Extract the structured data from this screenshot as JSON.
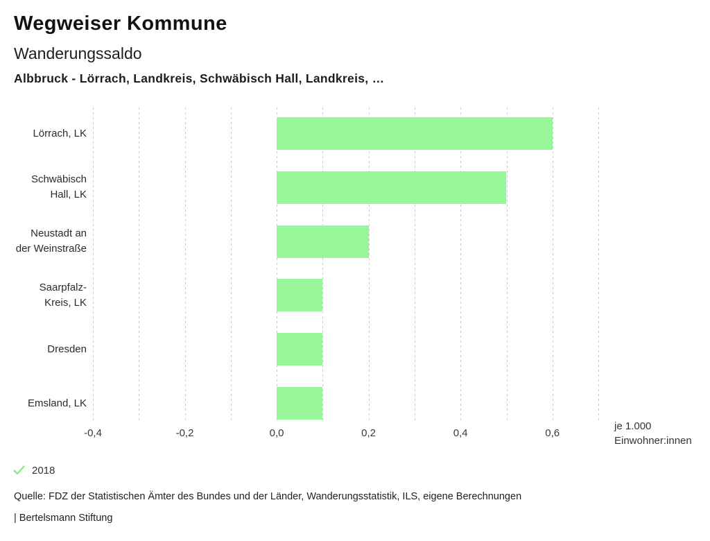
{
  "header": {
    "title": "Wegweiser Kommune",
    "subtitle": "Wanderungssaldo",
    "selection": "Albbruck - Lörrach, Landkreis, Schwäbisch Hall, Landkreis, …"
  },
  "chart_data": {
    "type": "bar",
    "orientation": "horizontal",
    "title": "Wanderungssaldo",
    "categories": [
      "Lörrach, LK",
      "Schwäbisch\nHall, LK",
      "Neustadt an\nder Weinstraße",
      "Saarpfalz-\nKreis, LK",
      "Dresden",
      "Emsland, LK"
    ],
    "series": [
      {
        "name": "2018",
        "values": [
          0.6,
          0.5,
          0.2,
          0.1,
          0.1,
          0.1
        ]
      }
    ],
    "xlim": [
      -0.4,
      0.7
    ],
    "grid_step": 0.1,
    "grid": true,
    "x_ticks": [
      -0.4,
      -0.2,
      0.0,
      0.2,
      0.4,
      0.6
    ],
    "x_tick_labels": [
      "-0,4",
      "-0,2",
      "0,0",
      "0,2",
      "0,4",
      "0,6"
    ],
    "x_axis_unit": "je 1.000\nEinwohner:innen",
    "bar_color": "#98f798",
    "gridline_color": "#c9c9c9",
    "legend_position": "bottom-left"
  },
  "legend": {
    "items": [
      {
        "label": "2018",
        "checked": true,
        "color": "#8fe88f"
      }
    ]
  },
  "footer": {
    "source": "Quelle: FDZ der Statistischen Ämter des Bundes und der Länder, Wanderungsstatistik, ILS, eigene Berechnungen",
    "attribution": "| Bertelsmann Stiftung"
  }
}
